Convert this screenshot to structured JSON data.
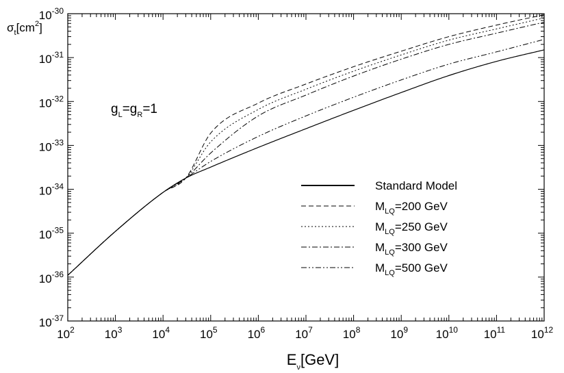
{
  "chart_data": {
    "type": "line",
    "xlabel": {
      "main": "E",
      "sub": "ν",
      "rest": "[GeV]"
    },
    "ylabel": {
      "main": "σ",
      "sub": "t",
      "mid": "[cm",
      "sup": "2",
      "rest": "]"
    },
    "xscale": "log",
    "yscale": "log",
    "xlim": [
      100,
      1000000000000
    ],
    "ylim": [
      1e-37,
      1e-30
    ],
    "x_ticks": [
      {
        "base": "10",
        "exp": "2"
      },
      {
        "base": "10",
        "exp": "3"
      },
      {
        "base": "10",
        "exp": "4"
      },
      {
        "base": "10",
        "exp": "5"
      },
      {
        "base": "10",
        "exp": "6"
      },
      {
        "base": "10",
        "exp": "7"
      },
      {
        "base": "10",
        "exp": "8"
      },
      {
        "base": "10",
        "exp": "9"
      },
      {
        "base": "10",
        "exp": "10"
      },
      {
        "base": "10",
        "exp": "11"
      },
      {
        "base": "10",
        "exp": "12"
      }
    ],
    "y_ticks": [
      {
        "base": "10",
        "exp": "-37"
      },
      {
        "base": "10",
        "exp": "-36"
      },
      {
        "base": "10",
        "exp": "-35"
      },
      {
        "base": "10",
        "exp": "-34"
      },
      {
        "base": "10",
        "exp": "-33"
      },
      {
        "base": "10",
        "exp": "-32"
      },
      {
        "base": "10",
        "exp": "-31"
      },
      {
        "base": "10",
        "exp": "-30"
      }
    ],
    "grid": false,
    "legend_position": "right",
    "annotation": {
      "g1": "g",
      "sub1": "L",
      "eq": "=g",
      "sub2": "R",
      "rest": "=1"
    },
    "x": [
      100,
      1000,
      10000,
      30000,
      100000,
      1000000,
      10000000,
      100000000,
      1000000000,
      10000000000,
      100000000000,
      1000000000000
    ],
    "series": [
      {
        "legend": {
          "main": "Standard Model"
        },
        "dash": "solid",
        "y": [
          1.1e-36,
          1.1e-35,
          8.5e-35,
          1.8e-34,
          3.2e-34,
          9e-34,
          2.4e-33,
          6.3e-33,
          1.6e-32,
          3.9e-32,
          8.2e-32,
          1.5e-31
        ]
      },
      {
        "legend": {
          "main": "M",
          "sub": "LQ",
          "rest": "=200 GeV"
        },
        "dash": "dashed",
        "y": [
          1.1e-36,
          1.1e-35,
          8.5e-35,
          1.8e-34,
          1.9e-33,
          9.2e-33,
          2.5e-32,
          6.2e-32,
          1.4e-31,
          3e-31,
          5.5e-31,
          9.5e-31
        ]
      },
      {
        "legend": {
          "main": "M",
          "sub": "LQ",
          "rest": "=250 GeV"
        },
        "dash": "dotted",
        "y": [
          1.1e-36,
          1.1e-35,
          8.5e-35,
          1.8e-34,
          1.2e-33,
          6.6e-33,
          1.9e-32,
          4.9e-32,
          1.15e-31,
          2.5e-31,
          4.5e-31,
          8e-31
        ]
      },
      {
        "legend": {
          "main": "M",
          "sub": "LQ",
          "rest": "=300 GeV"
        },
        "dash": "dash-dot",
        "y": [
          1.1e-36,
          1.1e-35,
          8.5e-35,
          1.8e-34,
          6.7e-34,
          4.7e-33,
          1.4e-32,
          3.8e-32,
          9.2e-32,
          2e-31,
          3.6e-31,
          6.4e-31
        ]
      },
      {
        "legend": {
          "main": "M",
          "sub": "LQ",
          "rest": "=500 GeV"
        },
        "dash": "dash-dot-dot",
        "y": [
          1.1e-36,
          1.1e-35,
          8.5e-35,
          1.8e-34,
          4.3e-34,
          1.6e-33,
          4.7e-33,
          1.25e-32,
          3.1e-32,
          7.1e-32,
          1.35e-31,
          2.6e-31
        ]
      }
    ]
  }
}
